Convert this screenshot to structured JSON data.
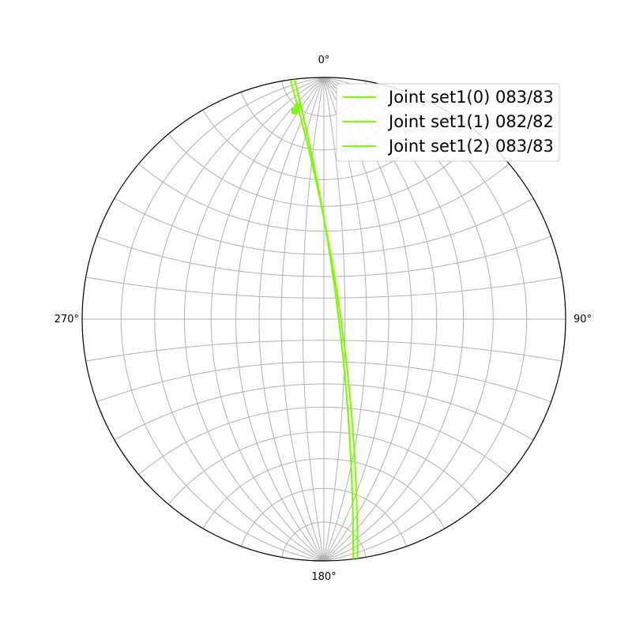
{
  "chart_data": {
    "type": "stereonet",
    "projection": "equal-angle",
    "grid": true,
    "grid_spacing_deg": 10,
    "azimuth_labels": [
      "0°",
      "90°",
      "180°",
      "270°"
    ],
    "legend_position": "top-right",
    "planes": [
      {
        "name": "Joint set1(0) 083/83",
        "dip_direction": 83,
        "dip": 83,
        "color": "#7cfc00"
      },
      {
        "name": "Joint set1(1) 082/82",
        "dip_direction": 82,
        "dip": 82,
        "color": "#7cfc00"
      },
      {
        "name": "Joint set1(2) 083/83",
        "dip_direction": 83,
        "dip": 83,
        "color": "#7cfc00"
      }
    ],
    "poles": [
      {
        "trend": 353,
        "plunge": 7
      },
      {
        "trend": 352,
        "plunge": 8
      },
      {
        "trend": 353,
        "plunge": 7
      }
    ]
  }
}
